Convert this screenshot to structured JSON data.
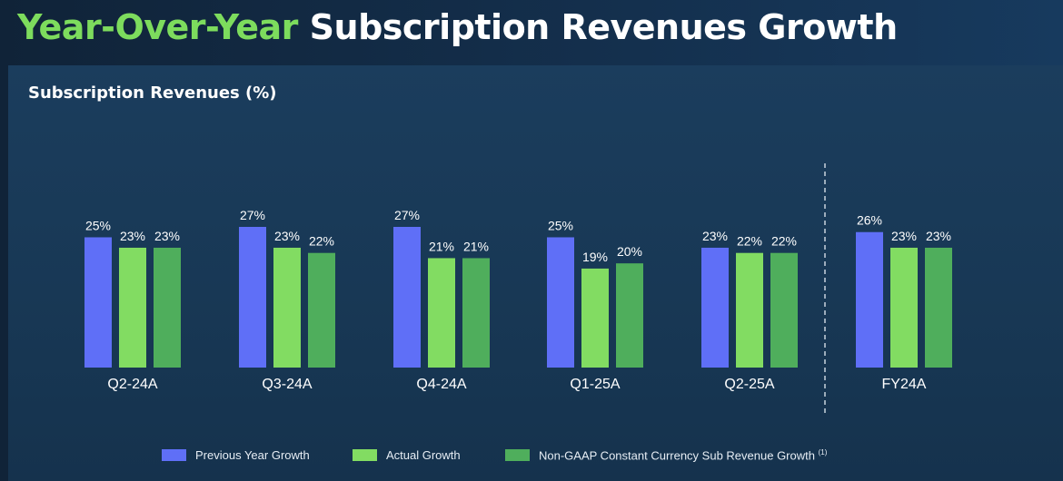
{
  "header": {
    "title_highlight": "Year-Over-Year",
    "title_rest": "Subscription Revenues Growth"
  },
  "colors": {
    "previous": "#5f6ff7",
    "actual": "#82dc62",
    "constant": "#4fae5c"
  },
  "chart_data": {
    "type": "bar",
    "title": "Subscription Revenues (%)",
    "categories": [
      "Q2-24A",
      "Q3-24A",
      "Q4-24A",
      "Q1-25A",
      "Q2-25A",
      "FY24A"
    ],
    "series": [
      {
        "name": "Previous Year Growth",
        "values": [
          25,
          27,
          27,
          25,
          23,
          26
        ]
      },
      {
        "name": "Actual Growth",
        "values": [
          23,
          23,
          21,
          19,
          22,
          23
        ]
      },
      {
        "name": "Non-GAAP Constant Currency Sub Revenue Growth",
        "footnote": "(1)",
        "values": [
          23,
          22,
          21,
          20,
          22,
          23
        ]
      }
    ],
    "value_suffix": "%",
    "separator_before": "FY24A",
    "ylim": [
      0,
      27
    ],
    "grid": false,
    "legend": "bottom"
  }
}
